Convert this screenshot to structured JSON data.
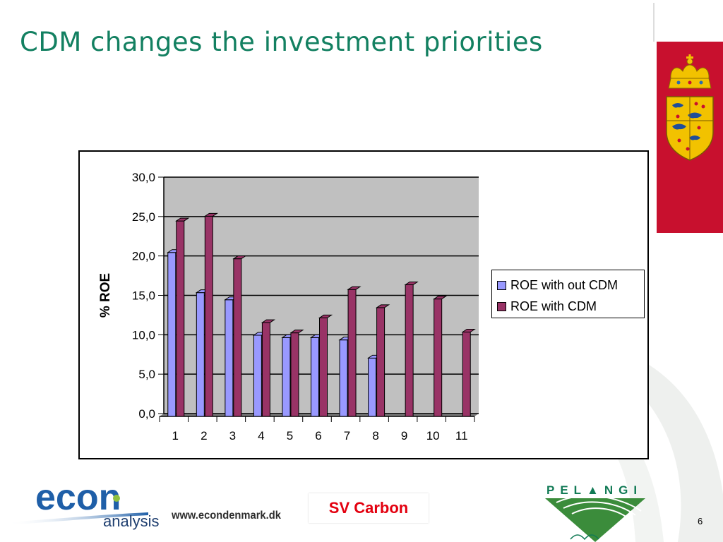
{
  "slide": {
    "title": "CDM changes the investment priorities",
    "page_number": "6"
  },
  "footer": {
    "econ_logo_text": "econ",
    "econ_sub_text": "analysis",
    "url": "www.econdenmark.dk",
    "carbon_label": "SV Carbon",
    "pelangi_text": "PEL▲NGI"
  },
  "colors": {
    "title": "#138061",
    "series_without": "#9999ff",
    "series_with": "#993366",
    "plot_bg": "#c0c0c0",
    "flag_red": "#c8102e",
    "carbon_label": "#e3000f"
  },
  "icons": {
    "flag": "danish-coat-of-arms-icon",
    "econ": "econ-logo",
    "pelangi": "pelangi-logo"
  },
  "chart_data": {
    "type": "bar",
    "title": "",
    "xlabel": "",
    "ylabel": "% ROE",
    "categories": [
      "1",
      "2",
      "3",
      "4",
      "5",
      "6",
      "7",
      "8",
      "9",
      "10",
      "11"
    ],
    "series": [
      {
        "name": "ROE with out CDM",
        "values": [
          20.8,
          15.7,
          14.8,
          10.3,
          10.0,
          10.0,
          9.7,
          7.4,
          null,
          null,
          null
        ]
      },
      {
        "name": "ROE with CDM",
        "values": [
          24.8,
          25.4,
          20.0,
          11.9,
          10.6,
          12.5,
          16.1,
          13.8,
          16.7,
          14.9,
          10.7
        ]
      }
    ],
    "ylim": [
      0,
      30
    ],
    "yticks": [
      "0,0",
      "5,0",
      "10,0",
      "15,0",
      "20,0",
      "25,0",
      "30,0"
    ],
    "grid": true,
    "legend_position": "right"
  }
}
